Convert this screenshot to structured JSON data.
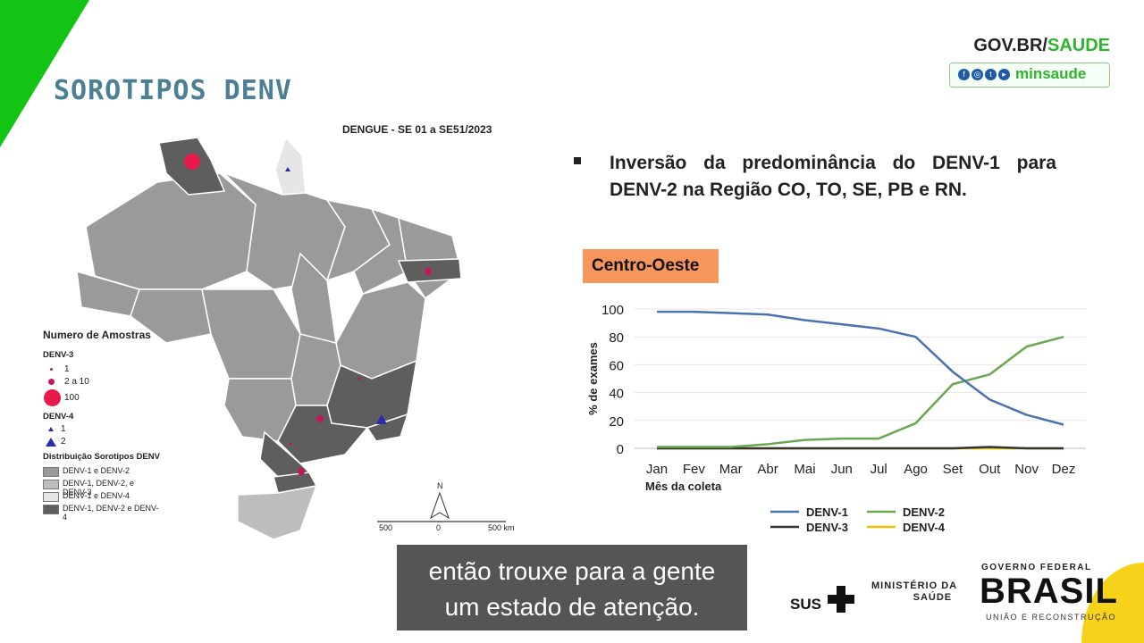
{
  "header": {
    "title": "SOROTIPOS DENV",
    "gov_br": "GOV.BR/",
    "gov_saude": "SAUDE",
    "minsaude": "minsaude"
  },
  "map": {
    "title": "DENGUE - SE 01 a SE51/2023",
    "legend": {
      "heading": "Numero de Amostras",
      "denv3_label": "DENV-3",
      "denv3_items": [
        "1",
        "2 a 10",
        "100"
      ],
      "denv4_label": "DENV-4",
      "denv4_items": [
        "1",
        "2"
      ],
      "dist_label": "Distribuição Sorotipos DENV",
      "dist_items": [
        "DENV-1 e DENV-2",
        "DENV-1, DENV-2, e DENV-3",
        "DENV-1 e DENV-4",
        "DENV-1, DENV-2 e DENV-4"
      ],
      "dist_colors": [
        "#9a9a9a",
        "#bdbdbd",
        "#e6e6e6",
        "#5e5e5e"
      ]
    },
    "north": "N",
    "scale": [
      "500",
      "0",
      "500 km"
    ]
  },
  "bullet": {
    "text": "Inversão da predominância do DENV-1 para DENV-2 na Região CO, TO, SE, PB e RN."
  },
  "region_label": "Centro-Oeste",
  "chart_data": {
    "type": "line",
    "x": [
      "Jan",
      "Fev",
      "Mar",
      "Abr",
      "Mai",
      "Jun",
      "Jul",
      "Ago",
      "Set",
      "Out",
      "Nov",
      "Dez"
    ],
    "xlabel": "Mês da coleta",
    "ylabel": "% de exames",
    "ylim": [
      0,
      100
    ],
    "yticks": [
      0,
      20,
      40,
      60,
      80,
      100
    ],
    "legend_position": "bottom",
    "series": [
      {
        "name": "DENV-1",
        "color": "#4a72b0",
        "values": [
          98,
          98,
          97,
          96,
          92,
          89,
          86,
          80,
          55,
          35,
          24,
          17
        ]
      },
      {
        "name": "DENV-2",
        "color": "#6aa84f",
        "values": [
          1,
          1,
          1,
          3,
          6,
          7,
          7,
          18,
          46,
          53,
          73,
          80
        ]
      },
      {
        "name": "DENV-3",
        "color": "#333333",
        "values": [
          0,
          0,
          0,
          0,
          0,
          0,
          0,
          0,
          0,
          1,
          0,
          0
        ]
      },
      {
        "name": "DENV-4",
        "color": "#f2c200",
        "values": [
          0,
          0,
          0,
          0,
          0,
          0,
          0,
          0,
          0,
          0,
          0,
          0
        ]
      }
    ]
  },
  "subtitle": {
    "line1": "então trouxe para a gente",
    "line2": "um estado de atenção."
  },
  "footer": {
    "sus": "SUS",
    "ministerio1": "MINISTÉRIO DA",
    "ministerio2": "SAÚDE",
    "gov_federal": "GOVERNO FEDERAL",
    "brasil": "BRASIL",
    "uniao": "UNIÃO E RECONSTRUÇÃO"
  }
}
